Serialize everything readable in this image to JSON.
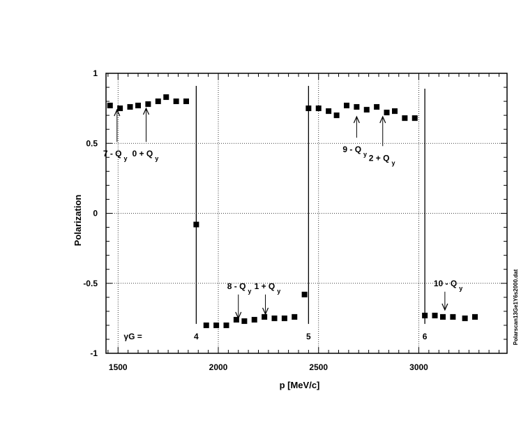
{
  "chart_data": {
    "type": "scatter",
    "title": "",
    "xlabel": "p [MeV/c]",
    "ylabel": "Polarization",
    "xlim": [
      1440,
      3440
    ],
    "ylim": [
      -1,
      1
    ],
    "xticks": [
      1500,
      2000,
      2500,
      3000
    ],
    "yticks": [
      1,
      0.5,
      0,
      -0.5,
      -1
    ],
    "ytick_labels": [
      "1",
      "0.5",
      "0",
      "-0.5",
      "-1"
    ],
    "grid": "dotted",
    "series": [
      {
        "x": [
          1460,
          1510,
          1560,
          1600,
          1650,
          1700,
          1740,
          1790,
          1840,
          1890,
          1940,
          1990,
          2040,
          2090,
          2130,
          2180,
          2230,
          2280,
          2330,
          2380,
          2430,
          2450,
          2500,
          2550,
          2590,
          2640,
          2690,
          2740,
          2790,
          2840,
          2880,
          2930,
          2980,
          3030,
          3080,
          3120,
          3170,
          3230,
          3280
        ],
        "y": [
          0.77,
          0.75,
          0.76,
          0.77,
          0.78,
          0.8,
          0.83,
          0.8,
          0.8,
          -0.08,
          -0.8,
          -0.8,
          -0.8,
          -0.76,
          -0.77,
          -0.76,
          -0.74,
          -0.75,
          -0.75,
          -0.74,
          -0.58,
          0.75,
          0.75,
          0.73,
          0.7,
          0.77,
          0.76,
          0.74,
          0.76,
          0.72,
          0.73,
          0.68,
          0.68,
          -0.73,
          -0.73,
          -0.74,
          -0.74,
          -0.75,
          -0.74
        ]
      }
    ],
    "gamma_g": {
      "label": "γG =",
      "lines": [
        {
          "label": "4",
          "x": 1890,
          "y_top": 0.91,
          "y_bottom": -0.79
        },
        {
          "label": "5",
          "x": 2450,
          "y_top": 0.91,
          "y_bottom": -0.79
        },
        {
          "label": "6",
          "x": 3030,
          "y_top": 0.89,
          "y_bottom": -0.79
        }
      ]
    },
    "annotations": [
      {
        "text": "7 - Q",
        "sub": "y",
        "x": 1495,
        "tail_y": 0.51,
        "head_y": 0.74,
        "dir": "up"
      },
      {
        "text": "0 + Q",
        "sub": "y",
        "x": 1640,
        "tail_y": 0.51,
        "head_y": 0.75,
        "dir": "up"
      },
      {
        "text": "8 - Q",
        "sub": "y",
        "x": 2100,
        "tail_y": -0.58,
        "head_y": -0.75,
        "dir": "down"
      },
      {
        "text": "1 + Q",
        "sub": "y",
        "x": 2235,
        "tail_y": -0.58,
        "head_y": -0.72,
        "dir": "down"
      },
      {
        "text": "9 - Q",
        "sub": "y",
        "x": 2690,
        "tail_y": 0.54,
        "head_y": 0.69,
        "dir": "up"
      },
      {
        "text": "2 + Q",
        "sub": "y",
        "x": 2820,
        "tail_y": 0.48,
        "head_y": 0.69,
        "dir": "up"
      },
      {
        "text": "10 - Q",
        "sub": "y",
        "x": 3130,
        "tail_y": -0.56,
        "head_y": -0.69,
        "dir": "down"
      }
    ],
    "side_note": "Polarscan13Ge1Y6s2000.dat"
  }
}
